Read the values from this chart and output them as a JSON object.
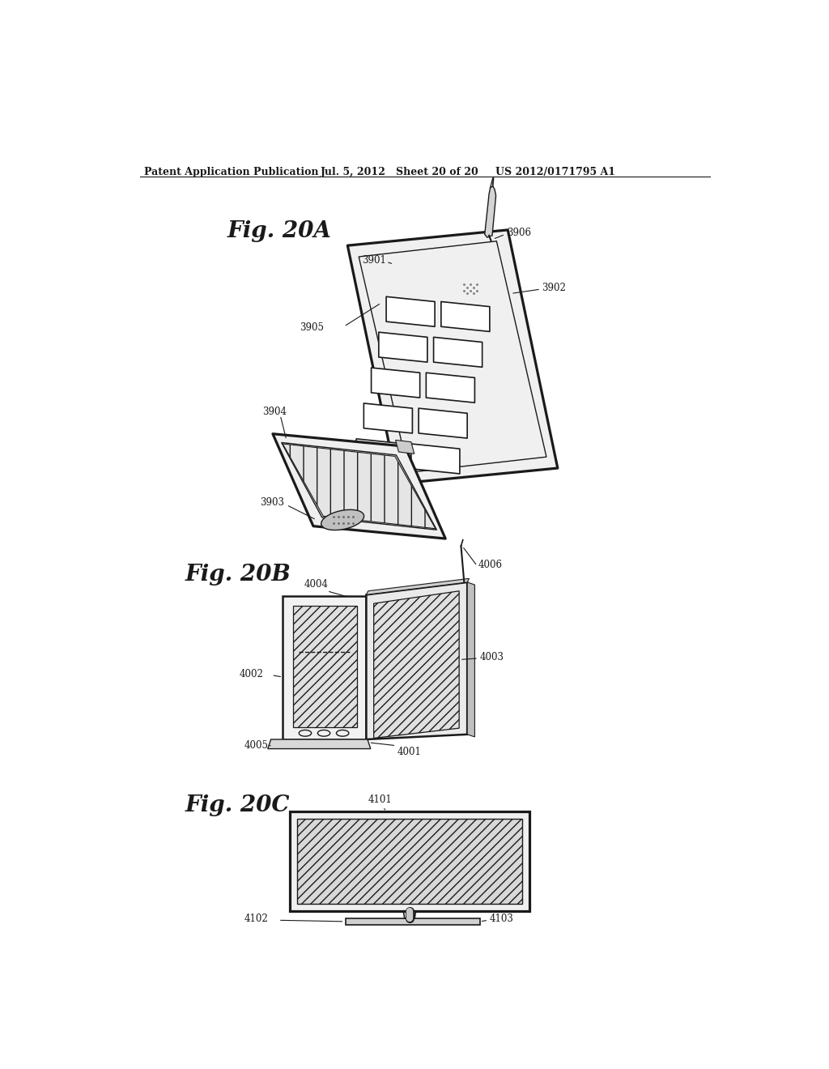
{
  "header_left": "Patent Application Publication",
  "header_mid": "Jul. 5, 2012   Sheet 20 of 20",
  "header_right": "US 2012/0171795 A1",
  "fig20a_label": "Fig. 20A",
  "fig20b_label": "Fig. 20B",
  "fig20c_label": "Fig. 20C",
  "bg_color": "#ffffff",
  "line_color": "#1a1a1a",
  "gray_light": "#e8e8e8",
  "gray_mid": "#cccccc",
  "gray_dark": "#888888"
}
